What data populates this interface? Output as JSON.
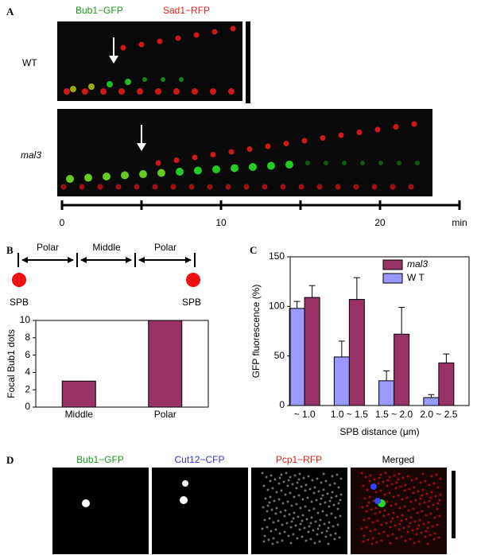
{
  "panels": {
    "a": "A",
    "b": "B",
    "c": "C",
    "d": "D"
  },
  "panel_a": {
    "channels": [
      "Bub1−GFP",
      "Sad1−RFP"
    ],
    "rows": [
      "WT",
      "mal3"
    ],
    "timeline": {
      "xlim": [
        0,
        25
      ],
      "xticks": [
        0,
        10,
        20
      ],
      "minor_xticks": [
        5,
        15,
        25
      ],
      "unit": "min"
    }
  },
  "panel_b": {
    "regions": [
      "Polar",
      "Middle",
      "Polar"
    ],
    "poles": [
      "SPB",
      "SPB"
    ]
  },
  "chart_data": [
    {
      "type": "bar",
      "ylabel": "Focal Bub1 dots",
      "categories": [
        "Middle",
        "Polar"
      ],
      "values": [
        3,
        10
      ],
      "color": "#993366",
      "ylim": [
        0,
        10
      ],
      "yticks": [
        0,
        2,
        4,
        6,
        8,
        10
      ]
    },
    {
      "type": "grouped_bar",
      "xlabel": "SPB distance (μm)",
      "ylabel": "GFP fluorescence (%)",
      "categories": [
        "~ 1.0",
        "1.0 ~ 1.5",
        "1.5 ~ 2.0",
        "2.0 ~ 2.5"
      ],
      "series": [
        {
          "name": "W T",
          "color": "#9999ff",
          "values": [
            98,
            49,
            25,
            8
          ],
          "errors": [
            7,
            16,
            10,
            3
          ]
        },
        {
          "name": "mal3",
          "color": "#993366",
          "values": [
            109,
            107,
            72,
            43
          ],
          "errors": [
            12,
            22,
            27,
            9
          ]
        }
      ],
      "ylim": [
        0,
        150
      ],
      "yticks": [
        0,
        50,
        100,
        150
      ],
      "legend": "top-right"
    }
  ],
  "panel_d": {
    "channels": [
      "Bub1−GFP",
      "Cut12−CFP",
      "Pcp1−RFP",
      "Merged"
    ]
  }
}
